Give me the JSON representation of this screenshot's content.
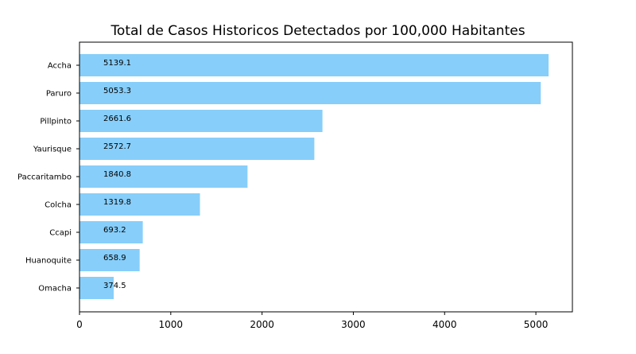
{
  "chart_data": {
    "type": "bar",
    "orientation": "horizontal",
    "title": "Total de Casos Historicos Detectados por 100,000 Habitantes",
    "xlabel": "",
    "ylabel": "",
    "categories": [
      "Accha",
      "Paruro",
      "Pillpinto",
      "Yaurisque",
      "Paccaritambo",
      "Colcha",
      "Ccapi",
      "Huanoquite",
      "Omacha"
    ],
    "values": [
      5139.1,
      5053.3,
      2661.6,
      2572.7,
      1840.8,
      1319.8,
      693.2,
      658.9,
      374.5
    ],
    "data_labels": [
      "5139.1",
      "5053.3",
      "2661.6",
      "2572.7",
      "1840.8",
      "1319.8",
      "693.2",
      "658.9",
      "374.5"
    ],
    "xlim": [
      0,
      5400
    ],
    "xticks": [
      0,
      1000,
      2000,
      3000,
      4000,
      5000
    ],
    "xtick_labels": [
      "0",
      "1000",
      "2000",
      "3000",
      "4000",
      "5000"
    ],
    "grid": false,
    "legend": "none",
    "colors": {
      "bar": "#87CEFA",
      "axis": "#000000"
    }
  }
}
